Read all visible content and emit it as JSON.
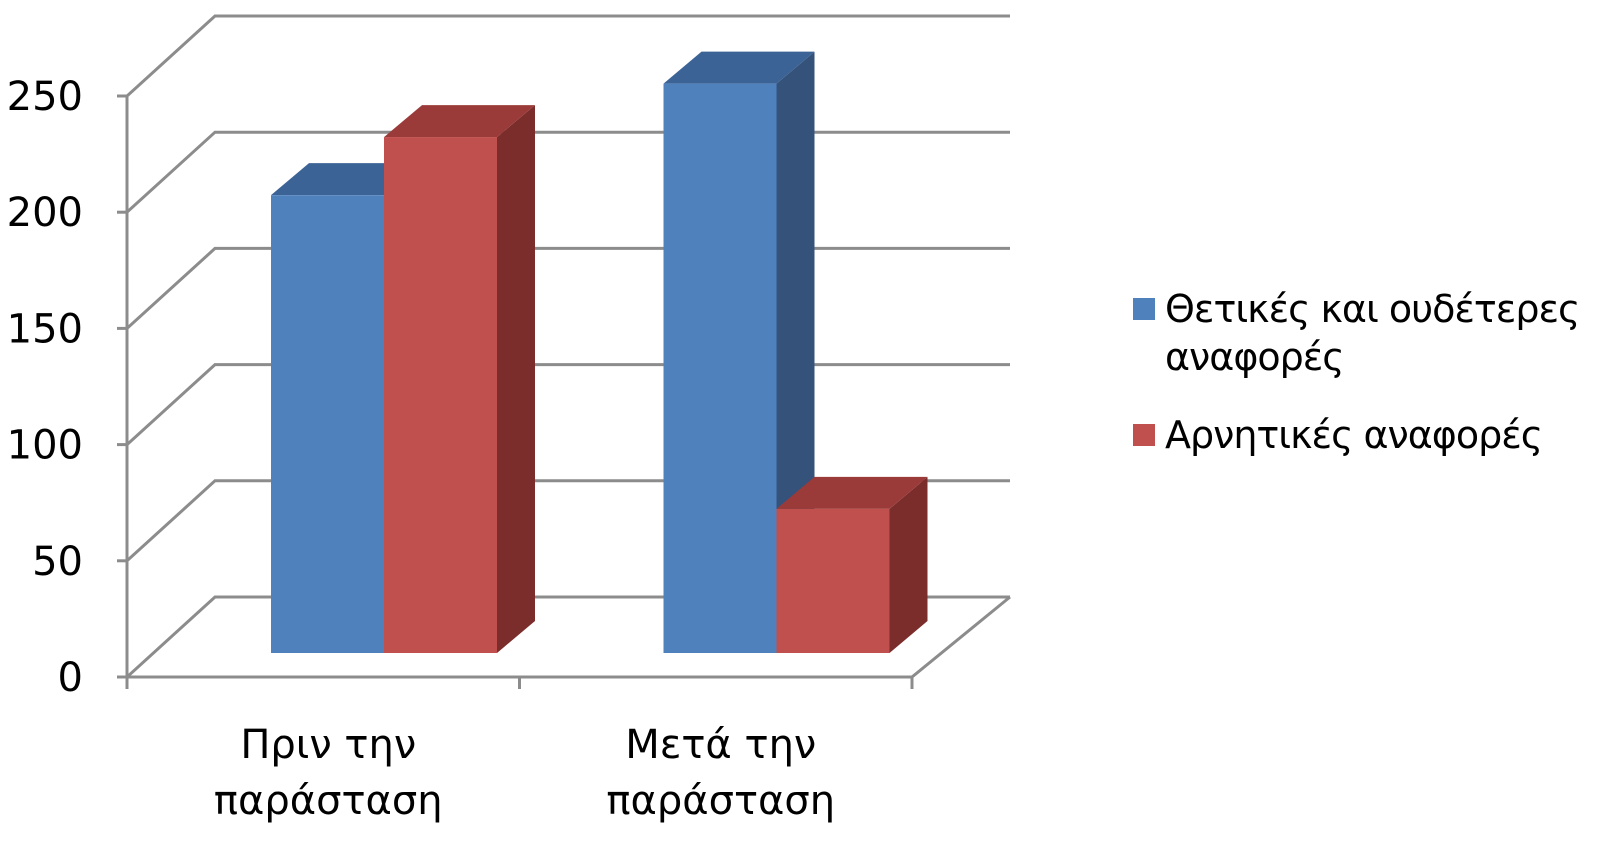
{
  "chart_data": {
    "type": "bar",
    "categories": [
      "Πριν την παράσταση",
      "Μετά την παράσταση"
    ],
    "category_lines": [
      [
        "Πριν την",
        "παράσταση"
      ],
      [
        "Μετά την",
        "παράσταση"
      ]
    ],
    "series": [
      {
        "name": "Θετικές και ουδέτερες αναφορές",
        "values": [
          197,
          245
        ],
        "color": "#4f81bd",
        "side_color": "#34527a",
        "top_color": "#3c6396"
      },
      {
        "name": "Αρνητικές αναφορές",
        "values": [
          222,
          62
        ],
        "color": "#c0504d",
        "side_color": "#7b2d2c",
        "top_color": "#9b3b39"
      }
    ],
    "ylim": [
      0,
      250
    ],
    "yticks": [
      "0",
      "50",
      "100",
      "150",
      "200",
      "250"
    ],
    "title": "",
    "xlabel": "",
    "ylabel": "",
    "grid": true,
    "three_d": true,
    "legend_position": "right"
  },
  "colors": {
    "grid": "#8c8c8c",
    "axis": "#8c8c8c"
  }
}
